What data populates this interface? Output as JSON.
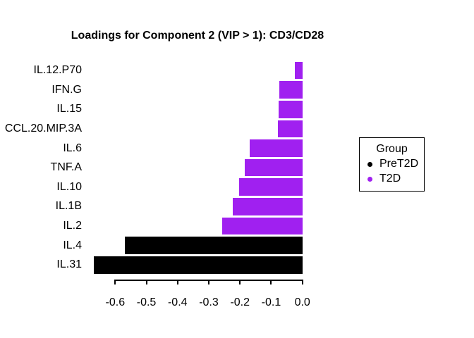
{
  "chart_data": {
    "type": "bar",
    "orientation": "horizontal",
    "title": "Loadings for Component 2 (VIP > 1): CD3/CD28",
    "categories": [
      "IL.12.P70",
      "IFN.G",
      "IL.15",
      "CCL.20.MIP.3A",
      "IL.6",
      "TNF.A",
      "IL.10",
      "IL.1B",
      "IL.2",
      "IL.4",
      "IL.31"
    ],
    "values": [
      -0.025,
      -0.075,
      -0.077,
      -0.079,
      -0.169,
      -0.185,
      -0.203,
      -0.223,
      -0.256,
      -0.57,
      -0.668
    ],
    "groups": [
      "T2D",
      "T2D",
      "T2D",
      "T2D",
      "T2D",
      "T2D",
      "T2D",
      "T2D",
      "T2D",
      "PreT2D",
      "PreT2D"
    ],
    "group_colors": {
      "PreT2D": "#000000",
      "T2D": "#A020F0"
    },
    "x_ticks": [
      -0.6,
      -0.5,
      -0.4,
      -0.3,
      -0.2,
      -0.1,
      0.0
    ],
    "x_tick_labels": [
      "-0.6",
      "-0.5",
      "-0.4",
      "-0.3",
      "-0.2",
      "-0.1",
      "0.0"
    ],
    "xlim": [
      -0.68,
      0
    ],
    "xlabel": "",
    "ylabel": "",
    "grid": false,
    "background_color": "#ffffff",
    "legend": {
      "title": "Group",
      "position": "right",
      "entries": [
        {
          "label": "PreT2D",
          "color": "#000000"
        },
        {
          "label": "T2D",
          "color": "#A020F0"
        }
      ]
    }
  }
}
